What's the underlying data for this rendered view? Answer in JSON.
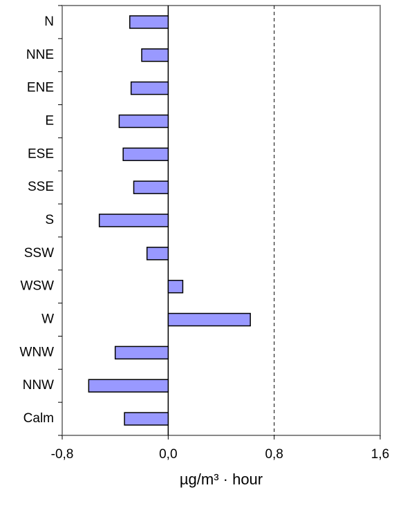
{
  "chart_data": {
    "type": "hbar",
    "categories": [
      "N",
      "NNE",
      "ENE",
      "E",
      "ESE",
      "SSE",
      "S",
      "SSW",
      "WSW",
      "W",
      "WNW",
      "NNW",
      "Calm"
    ],
    "values": [
      -0.29,
      -0.2,
      -0.28,
      -0.37,
      -0.34,
      -0.26,
      -0.52,
      -0.16,
      0.11,
      0.62,
      -0.4,
      -0.6,
      -0.33
    ],
    "color": "#9999ff",
    "x_label": "µg/m³ · hour",
    "xlim": [
      -0.8,
      1.6
    ],
    "xticks": [
      {
        "value": -0.8,
        "label": "-0,8"
      },
      {
        "value": 0,
        "label": "0,0"
      },
      {
        "value": 0.8,
        "label": "0,8"
      },
      {
        "value": 1.6,
        "label": "1,6"
      }
    ],
    "reference_lines": [
      0.8
    ]
  }
}
